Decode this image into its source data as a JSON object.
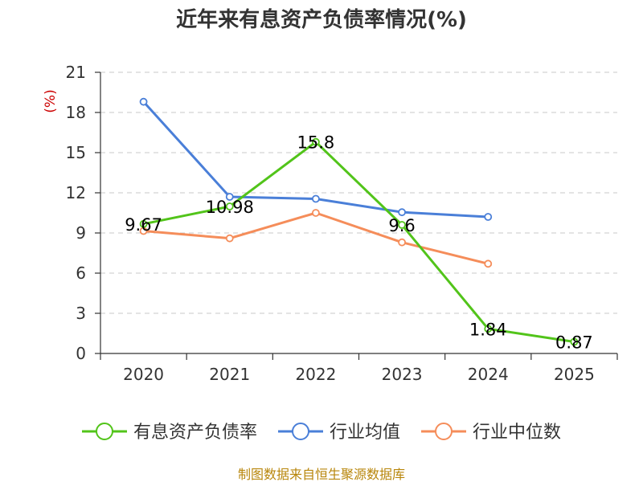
{
  "chart_data": {
    "type": "line",
    "title": "近年来有息资产负债率情况(%)",
    "ylabel": "(%)",
    "xlabel": "",
    "categories": [
      "2020",
      "2021",
      "2022",
      "2023",
      "2024",
      "2025"
    ],
    "ylim": [
      0,
      21
    ],
    "yticks": [
      0,
      3,
      6,
      9,
      12,
      15,
      18,
      21
    ],
    "grid": true,
    "legend_position": "bottom",
    "series": [
      {
        "name": "有息资产负债率",
        "color": "#52c41a",
        "values": [
          9.67,
          10.98,
          15.8,
          9.6,
          1.84,
          0.87
        ],
        "labels": [
          "9.67",
          "10.98",
          "15.8",
          "9.6",
          "1.84",
          "0.87"
        ]
      },
      {
        "name": "行业均值",
        "color": "#4a7fd8",
        "values": [
          18.8,
          11.7,
          11.55,
          10.55,
          10.2,
          null
        ]
      },
      {
        "name": "行业中位数",
        "color": "#f58d5a",
        "values": [
          9.15,
          8.6,
          10.5,
          8.3,
          6.7,
          null
        ]
      }
    ]
  },
  "footer": {
    "source": "制图数据来自恒生聚源数据库"
  }
}
